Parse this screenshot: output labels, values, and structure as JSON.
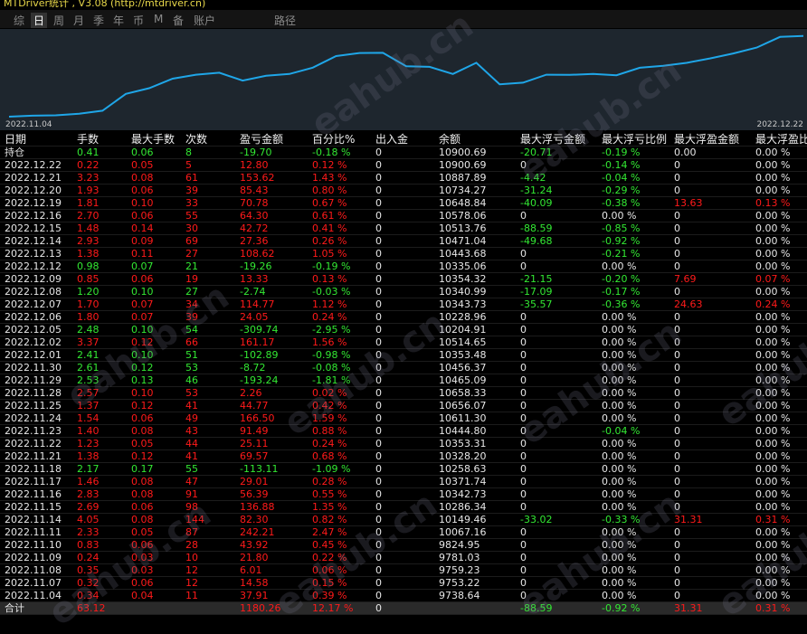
{
  "header": {
    "title": "MTDriver统计 , V3.08 (http://mtdriver.cn)",
    "tabs": [
      "综",
      "日",
      "周",
      "月",
      "季",
      "年",
      "币",
      "M",
      "备",
      "账户",
      "路径"
    ],
    "active_tab": 1
  },
  "watermark": "eahub.cn",
  "chart_data": {
    "type": "line",
    "color": "#1fa6e8",
    "categories": [
      "2022.11.04",
      null,
      null,
      null,
      null,
      null,
      null,
      null,
      null,
      null,
      null,
      null,
      null,
      null,
      null,
      null,
      null,
      null,
      null,
      null,
      null,
      null,
      null,
      null,
      null,
      null,
      null,
      null,
      null,
      null,
      null,
      null,
      null,
      null,
      "2022.12.22"
    ],
    "values": [
      9738.64,
      9753.22,
      9759.23,
      9781.03,
      9824.95,
      10067.16,
      10149.46,
      10286.34,
      10342.73,
      10371.74,
      10258.63,
      10328.2,
      10353.31,
      10444.8,
      10611.3,
      10656.07,
      10658.33,
      10465.09,
      10456.37,
      10353.48,
      10514.65,
      10204.91,
      10228.96,
      10343.73,
      10340.99,
      10354.32,
      10335.06,
      10443.68,
      10471.04,
      10513.76,
      10578.06,
      10648.84,
      10734.27,
      10887.89,
      10900.69
    ],
    "ylim": [
      9700,
      10950
    ]
  },
  "table": {
    "columns": [
      "日期",
      "手数",
      "最大手数",
      "次数",
      "盈亏金额",
      "百分比%",
      "出入金",
      "余额",
      "最大浮亏金额",
      "最大浮亏比例",
      "最大浮盈金额",
      "最大浮盈比"
    ],
    "rows": [
      [
        "持仓",
        "0.41",
        "0.06",
        "8",
        "-19.70",
        "-0.18 %",
        "0",
        "10900.69",
        "-20.71",
        "-0.19 %",
        "0.00",
        "0.00 %"
      ],
      [
        "2022.12.22",
        "0.22",
        "0.05",
        "5",
        "12.80",
        "0.12 %",
        "0",
        "10900.69",
        "0",
        "-0.14 %",
        "0",
        "0.00 %"
      ],
      [
        "2022.12.21",
        "3.23",
        "0.08",
        "61",
        "153.62",
        "1.43 %",
        "0",
        "10887.89",
        "-4.42",
        "-0.04 %",
        "0",
        "0.00 %"
      ],
      [
        "2022.12.20",
        "1.93",
        "0.06",
        "39",
        "85.43",
        "0.80 %",
        "0",
        "10734.27",
        "-31.24",
        "-0.29 %",
        "0",
        "0.00 %"
      ],
      [
        "2022.12.19",
        "1.81",
        "0.10",
        "33",
        "70.78",
        "0.67 %",
        "0",
        "10648.84",
        "-40.09",
        "-0.38 %",
        "13.63",
        "0.13 %"
      ],
      [
        "2022.12.16",
        "2.70",
        "0.06",
        "55",
        "64.30",
        "0.61 %",
        "0",
        "10578.06",
        "0",
        "0.00 %",
        "0",
        "0.00 %"
      ],
      [
        "2022.12.15",
        "1.48",
        "0.14",
        "30",
        "42.72",
        "0.41 %",
        "0",
        "10513.76",
        "-88.59",
        "-0.85 %",
        "0",
        "0.00 %"
      ],
      [
        "2022.12.14",
        "2.93",
        "0.09",
        "69",
        "27.36",
        "0.26 %",
        "0",
        "10471.04",
        "-49.68",
        "-0.92 %",
        "0",
        "0.00 %"
      ],
      [
        "2022.12.13",
        "1.38",
        "0.11",
        "27",
        "108.62",
        "1.05 %",
        "0",
        "10443.68",
        "0",
        "-0.21 %",
        "0",
        "0.00 %"
      ],
      [
        "2022.12.12",
        "0.98",
        "0.07",
        "21",
        "-19.26",
        "-0.19 %",
        "0",
        "10335.06",
        "0",
        "0.00 %",
        "0",
        "0.00 %"
      ],
      [
        "2022.12.09",
        "0.85",
        "0.06",
        "19",
        "13.33",
        "0.13 %",
        "0",
        "10354.32",
        "-21.15",
        "-0.20 %",
        "7.69",
        "0.07 %"
      ],
      [
        "2022.12.08",
        "1.20",
        "0.10",
        "27",
        "-2.74",
        "-0.03 %",
        "0",
        "10340.99",
        "-17.09",
        "-0.17 %",
        "0",
        "0.00 %"
      ],
      [
        "2022.12.07",
        "1.70",
        "0.07",
        "34",
        "114.77",
        "1.12 %",
        "0",
        "10343.73",
        "-35.57",
        "-0.36 %",
        "24.63",
        "0.24 %"
      ],
      [
        "2022.12.06",
        "1.80",
        "0.07",
        "39",
        "24.05",
        "0.24 %",
        "0",
        "10228.96",
        "0",
        "0.00 %",
        "0",
        "0.00 %"
      ],
      [
        "2022.12.05",
        "2.48",
        "0.10",
        "54",
        "-309.74",
        "-2.95 %",
        "0",
        "10204.91",
        "0",
        "0.00 %",
        "0",
        "0.00 %"
      ],
      [
        "2022.12.02",
        "3.37",
        "0.12",
        "66",
        "161.17",
        "1.56 %",
        "0",
        "10514.65",
        "0",
        "0.00 %",
        "0",
        "0.00 %"
      ],
      [
        "2022.12.01",
        "2.41",
        "0.10",
        "51",
        "-102.89",
        "-0.98 %",
        "0",
        "10353.48",
        "0",
        "0.00 %",
        "0",
        "0.00 %"
      ],
      [
        "2022.11.30",
        "2.61",
        "0.12",
        "53",
        "-8.72",
        "-0.08 %",
        "0",
        "10456.37",
        "0",
        "0.00 %",
        "0",
        "0.00 %"
      ],
      [
        "2022.11.29",
        "2.53",
        "0.13",
        "46",
        "-193.24",
        "-1.81 %",
        "0",
        "10465.09",
        "0",
        "0.00 %",
        "0",
        "0.00 %"
      ],
      [
        "2022.11.28",
        "2.57",
        "0.10",
        "53",
        "2.26",
        "0.02 %",
        "0",
        "10658.33",
        "0",
        "0.00 %",
        "0",
        "0.00 %"
      ],
      [
        "2022.11.25",
        "1.37",
        "0.12",
        "41",
        "44.77",
        "0.42 %",
        "0",
        "10656.07",
        "0",
        "0.00 %",
        "0",
        "0.00 %"
      ],
      [
        "2022.11.24",
        "1.54",
        "0.06",
        "49",
        "166.50",
        "1.59 %",
        "0",
        "10611.30",
        "0",
        "0.00 %",
        "0",
        "0.00 %"
      ],
      [
        "2022.11.23",
        "1.40",
        "0.08",
        "43",
        "91.49",
        "0.88 %",
        "0",
        "10444.80",
        "0",
        "-0.04 %",
        "0",
        "0.00 %"
      ],
      [
        "2022.11.22",
        "1.23",
        "0.05",
        "44",
        "25.11",
        "0.24 %",
        "0",
        "10353.31",
        "0",
        "0.00 %",
        "0",
        "0.00 %"
      ],
      [
        "2022.11.21",
        "1.38",
        "0.12",
        "41",
        "69.57",
        "0.68 %",
        "0",
        "10328.20",
        "0",
        "0.00 %",
        "0",
        "0.00 %"
      ],
      [
        "2022.11.18",
        "2.17",
        "0.17",
        "55",
        "-113.11",
        "-1.09 %",
        "0",
        "10258.63",
        "0",
        "0.00 %",
        "0",
        "0.00 %"
      ],
      [
        "2022.11.17",
        "1.46",
        "0.08",
        "47",
        "29.01",
        "0.28 %",
        "0",
        "10371.74",
        "0",
        "0.00 %",
        "0",
        "0.00 %"
      ],
      [
        "2022.11.16",
        "2.83",
        "0.08",
        "91",
        "56.39",
        "0.55 %",
        "0",
        "10342.73",
        "0",
        "0.00 %",
        "0",
        "0.00 %"
      ],
      [
        "2022.11.15",
        "2.69",
        "0.06",
        "98",
        "136.88",
        "1.35 %",
        "0",
        "10286.34",
        "0",
        "0.00 %",
        "0",
        "0.00 %"
      ],
      [
        "2022.11.14",
        "4.05",
        "0.08",
        "144",
        "82.30",
        "0.82 %",
        "0",
        "10149.46",
        "-33.02",
        "-0.33 %",
        "31.31",
        "0.31 %"
      ],
      [
        "2022.11.11",
        "2.33",
        "0.05",
        "87",
        "242.21",
        "2.47 %",
        "0",
        "10067.16",
        "0",
        "0.00 %",
        "0",
        "0.00 %"
      ],
      [
        "2022.11.10",
        "0.83",
        "0.06",
        "28",
        "43.92",
        "0.45 %",
        "0",
        "9824.95",
        "0",
        "0.00 %",
        "0",
        "0.00 %"
      ],
      [
        "2022.11.09",
        "0.24",
        "0.03",
        "10",
        "21.80",
        "0.22 %",
        "0",
        "9781.03",
        "0",
        "0.00 %",
        "0",
        "0.00 %"
      ],
      [
        "2022.11.08",
        "0.35",
        "0.03",
        "12",
        "6.01",
        "0.06 %",
        "0",
        "9759.23",
        "0",
        "0.00 %",
        "0",
        "0.00 %"
      ],
      [
        "2022.11.07",
        "0.32",
        "0.06",
        "12",
        "14.58",
        "0.15 %",
        "0",
        "9753.22",
        "0",
        "0.00 %",
        "0",
        "0.00 %"
      ],
      [
        "2022.11.04",
        "0.34",
        "0.04",
        "11",
        "37.91",
        "0.39 %",
        "0",
        "9738.64",
        "0",
        "0.00 %",
        "0",
        "0.00 %"
      ],
      [
        "合计",
        "63.12",
        null,
        null,
        "1180.26",
        "12.17 %",
        "0",
        null,
        "-88.59",
        "-0.92 %",
        "31.31",
        "0.31 %"
      ]
    ]
  }
}
